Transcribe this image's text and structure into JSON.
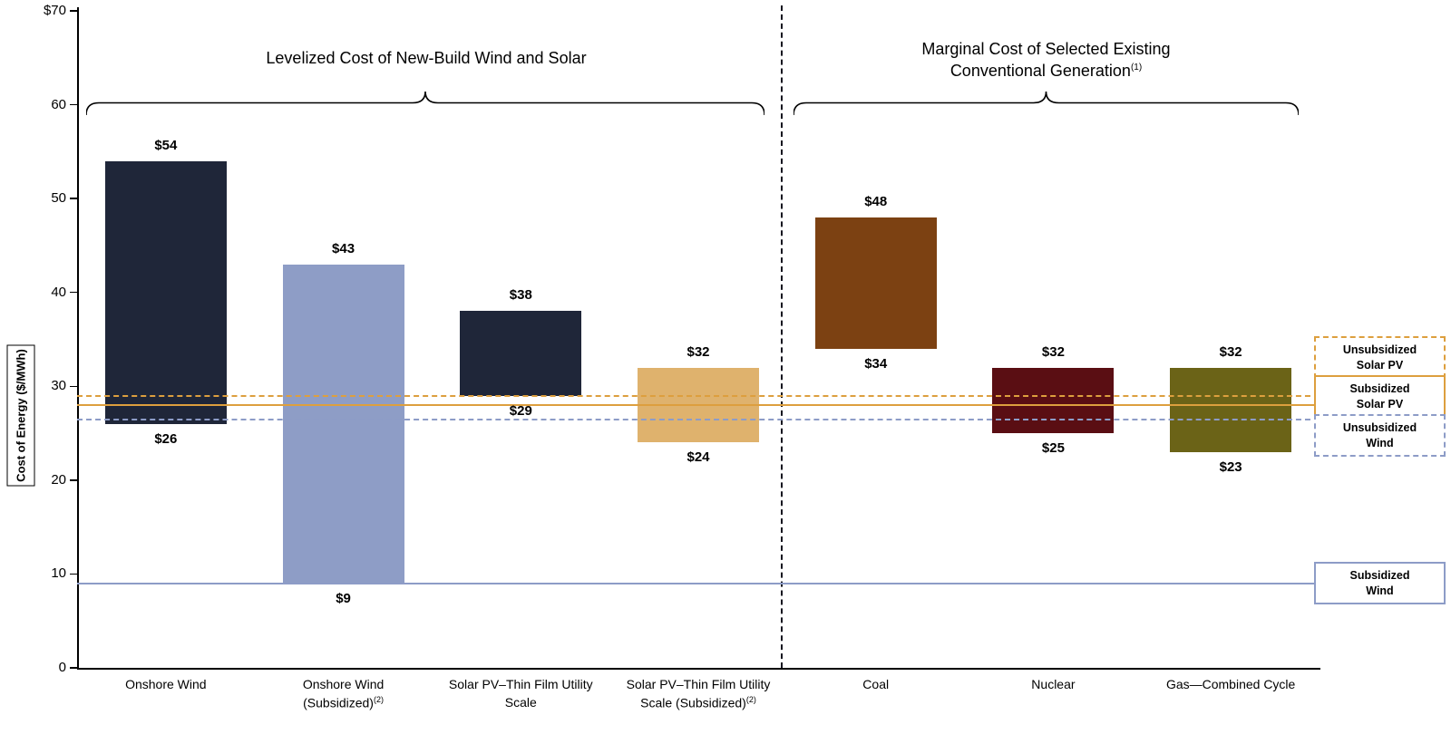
{
  "chart_data": {
    "type": "bar",
    "subtype": "floating-range-columns",
    "section_titles": {
      "left": "Levelized Cost of New-Build Wind and Solar",
      "right_line1": "Marginal Cost of Selected Existing",
      "right_line2": "Conventional Generation",
      "right_sup": "(1)"
    },
    "ylabel": "Cost of Energy ($/MWh)",
    "ylim": [
      0,
      70
    ],
    "yticks": [
      {
        "v": 70,
        "label": "$70"
      },
      {
        "v": 60,
        "label": "60"
      },
      {
        "v": 50,
        "label": "50"
      },
      {
        "v": 40,
        "label": "40"
      },
      {
        "v": 30,
        "label": "30"
      },
      {
        "v": 20,
        "label": "20"
      },
      {
        "v": 10,
        "label": "10"
      },
      {
        "v": 0,
        "label": "0"
      }
    ],
    "bars": [
      {
        "name": "Onshore Wind",
        "lines": [
          "Onshore Wind"
        ],
        "sup": "",
        "low": 26,
        "high": 54,
        "low_label": "$26",
        "high_label": "$54",
        "color": "#1f2639",
        "section": "new-build"
      },
      {
        "name": "Onshore Wind (Subsidized)",
        "lines": [
          "Onshore Wind",
          "(Subsidized)"
        ],
        "sup": "(2)",
        "low": 9,
        "high": 43,
        "low_label": "$9",
        "high_label": "$43",
        "color": "#8e9dc6",
        "section": "new-build"
      },
      {
        "name": "Solar PV–Thin Film Utility Scale",
        "lines": [
          "Solar PV–Thin Film Utility",
          "Scale"
        ],
        "sup": "",
        "low": 29,
        "high": 38,
        "low_label": "$29",
        "high_label": "$38",
        "color": "#1f2639",
        "section": "new-build"
      },
      {
        "name": "Solar PV–Thin Film Utility Scale (Subsidized)",
        "lines": [
          "Solar PV–Thin Film Utility",
          "Scale (Subsidized)"
        ],
        "sup": "(2)",
        "low": 24,
        "high": 32,
        "low_label": "$24",
        "high_label": "$32",
        "color": "#dfb26d",
        "section": "new-build"
      },
      {
        "name": "Coal",
        "lines": [
          "Coal"
        ],
        "sup": "",
        "low": 34,
        "high": 48,
        "low_label": "$34",
        "high_label": "$48",
        "color": "#7c4112",
        "section": "existing"
      },
      {
        "name": "Nuclear",
        "lines": [
          "Nuclear"
        ],
        "sup": "",
        "low": 25,
        "high": 32,
        "low_label": "$25",
        "high_label": "$32",
        "color": "#5a0e13",
        "section": "existing"
      },
      {
        "name": "Gas—Combined Cycle",
        "lines": [
          "Gas—Combined Cycle"
        ],
        "sup": "",
        "low": 23,
        "high": 32,
        "low_label": "$23",
        "high_label": "$32",
        "color": "#6b6317",
        "section": "existing"
      }
    ],
    "ref_lines": [
      {
        "name": "Unsubsidized Solar PV",
        "label_lines": [
          "Unsubsidized",
          "Solar PV"
        ],
        "value": 29,
        "style": "dashed",
        "color": "#dd9f3e"
      },
      {
        "name": "Subsidized Solar PV",
        "label_lines": [
          "Subsidized",
          "Solar PV"
        ],
        "value": 28,
        "style": "solid",
        "color": "#dd9f3e"
      },
      {
        "name": "Unsubsidized Wind",
        "label_lines": [
          "Unsubsidized",
          "Wind"
        ],
        "value": 26.5,
        "style": "dashed",
        "color": "#8d9cc7"
      },
      {
        "name": "Subsidized Wind",
        "label_lines": [
          "Subsidized",
          "Wind"
        ],
        "value": 9,
        "style": "solid",
        "color": "#8d9cc7"
      }
    ]
  }
}
